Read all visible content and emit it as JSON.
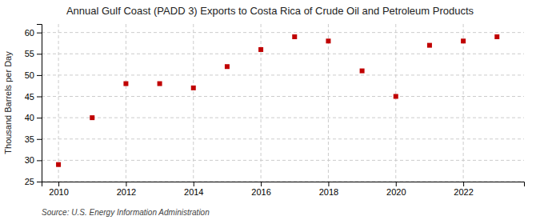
{
  "chart_data": {
    "type": "scatter",
    "title": "Annual Gulf Coast (PADD 3) Exports to Costa Rica of Crude Oil and Petroleum Products",
    "ylabel": "Thousand Barrels per Day",
    "annotations": [
      "Source: U.S. Energy Information Administration"
    ],
    "x": [
      2010,
      2011,
      2012,
      2013,
      2014,
      2015,
      2016,
      2017,
      2018,
      2019,
      2020,
      2021,
      2022,
      2023
    ],
    "values": [
      29,
      40,
      48,
      48,
      47,
      52,
      56,
      59,
      58,
      51,
      45,
      57,
      58,
      59
    ],
    "color": "#c00000",
    "marker": "square",
    "xlim": [
      2009.5,
      2023.8
    ],
    "xticks": [
      2010,
      2012,
      2014,
      2016,
      2018,
      2020,
      2022
    ],
    "ylim": [
      25,
      62
    ],
    "yticks": [
      25,
      30,
      35,
      40,
      45,
      50,
      55,
      60
    ],
    "grid": true
  }
}
